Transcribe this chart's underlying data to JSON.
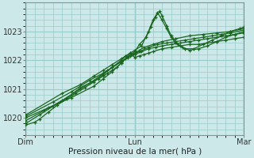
{
  "xlabel": "Pression niveau de la mer( hPa )",
  "bg_color": "#cce8e8",
  "grid_color": "#99cccc",
  "line_color": "#1a6620",
  "yticks": [
    1020,
    1021,
    1022,
    1023
  ],
  "xlim": [
    0,
    48
  ],
  "ylim": [
    1019.4,
    1023.9
  ],
  "xtick_labels": [
    "Dim",
    "Lun",
    "Mar"
  ],
  "xtick_positions": [
    0,
    24,
    48
  ],
  "series": [
    [
      0.0,
      1019.75,
      2.0,
      1019.85,
      3.0,
      1019.95,
      5.0,
      1020.2,
      7.0,
      1020.45,
      9.0,
      1020.65,
      11.0,
      1020.85,
      13.0,
      1021.05,
      15.0,
      1021.25,
      17.0,
      1021.5,
      19.0,
      1021.75,
      21.0,
      1022.0,
      22.0,
      1022.15,
      23.0,
      1022.25,
      24.0,
      1022.1,
      25.0,
      1022.15,
      26.0,
      1022.2,
      27.0,
      1022.25,
      28.0,
      1022.3,
      30.0,
      1022.4,
      32.0,
      1022.45,
      34.0,
      1022.5,
      36.0,
      1022.55,
      38.0,
      1022.55,
      40.0,
      1022.6,
      42.0,
      1022.65,
      44.0,
      1022.7,
      46.0,
      1022.75,
      48.0,
      1022.8
    ],
    [
      0.0,
      1019.8,
      3.0,
      1020.1,
      6.0,
      1020.4,
      9.0,
      1020.7,
      12.0,
      1021.0,
      15.0,
      1021.3,
      18.0,
      1021.65,
      21.0,
      1021.95,
      23.0,
      1022.15,
      24.0,
      1022.2,
      25.5,
      1022.3,
      27.0,
      1022.4,
      28.5,
      1022.45,
      30.0,
      1022.5,
      32.0,
      1022.55,
      34.0,
      1022.6,
      36.0,
      1022.65,
      38.0,
      1022.7,
      40.0,
      1022.75,
      42.0,
      1022.8,
      44.0,
      1022.85,
      46.0,
      1022.9,
      48.0,
      1022.95
    ],
    [
      0.0,
      1019.9,
      4.0,
      1020.25,
      8.0,
      1020.6,
      10.0,
      1020.8,
      12.0,
      1021.05,
      14.0,
      1021.2,
      16.0,
      1021.35,
      17.0,
      1021.45,
      18.0,
      1021.55,
      19.0,
      1021.65,
      20.0,
      1021.75,
      21.0,
      1021.9,
      22.0,
      1022.05,
      23.5,
      1022.2,
      25.0,
      1022.3,
      27.0,
      1022.45,
      29.0,
      1022.55,
      31.0,
      1022.6,
      33.0,
      1022.65,
      35.0,
      1022.7,
      37.0,
      1022.75,
      39.0,
      1022.8,
      41.0,
      1022.85,
      43.0,
      1022.9,
      45.0,
      1022.95,
      48.0,
      1023.05
    ],
    [
      0.0,
      1020.05,
      6.0,
      1020.55,
      10.0,
      1020.9,
      14.0,
      1021.3,
      17.0,
      1021.55,
      19.0,
      1021.75,
      21.0,
      1021.95,
      22.5,
      1022.1,
      24.0,
      1022.25,
      25.0,
      1022.35,
      26.0,
      1022.45,
      28.0,
      1022.55,
      30.0,
      1022.65,
      33.0,
      1022.75,
      36.0,
      1022.85,
      39.0,
      1022.9,
      42.0,
      1022.95,
      45.0,
      1023.0,
      48.0,
      1023.1
    ],
    [
      0.0,
      1020.1,
      8.0,
      1020.85,
      12.0,
      1021.15,
      15.0,
      1021.45,
      17.0,
      1021.65,
      19.0,
      1021.85,
      21.0,
      1022.05,
      22.0,
      1022.15,
      23.0,
      1022.25,
      24.0,
      1022.35,
      25.5,
      1022.5,
      27.0,
      1023.0,
      28.0,
      1023.4,
      29.0,
      1023.65,
      30.0,
      1023.4,
      31.0,
      1023.1,
      32.0,
      1022.8,
      33.0,
      1022.6,
      34.5,
      1022.45,
      36.0,
      1022.35,
      38.0,
      1022.4,
      40.0,
      1022.5,
      42.0,
      1022.65,
      44.0,
      1022.8,
      46.0,
      1022.9,
      48.0,
      1023.0
    ],
    [
      0.0,
      1020.0,
      5.0,
      1020.35,
      10.0,
      1020.7,
      15.0,
      1021.1,
      17.0,
      1021.35,
      19.0,
      1021.6,
      21.0,
      1021.9,
      22.5,
      1022.15,
      24.0,
      1022.3,
      25.0,
      1022.55,
      26.5,
      1022.8,
      27.5,
      1023.15,
      28.5,
      1023.5,
      29.5,
      1023.7,
      30.0,
      1023.55,
      31.0,
      1023.2,
      32.0,
      1022.85,
      33.5,
      1022.55,
      35.0,
      1022.4,
      37.0,
      1022.4,
      39.0,
      1022.55,
      41.0,
      1022.7,
      43.0,
      1022.85,
      45.0,
      1023.0,
      47.0,
      1023.1,
      48.0,
      1023.15
    ]
  ]
}
